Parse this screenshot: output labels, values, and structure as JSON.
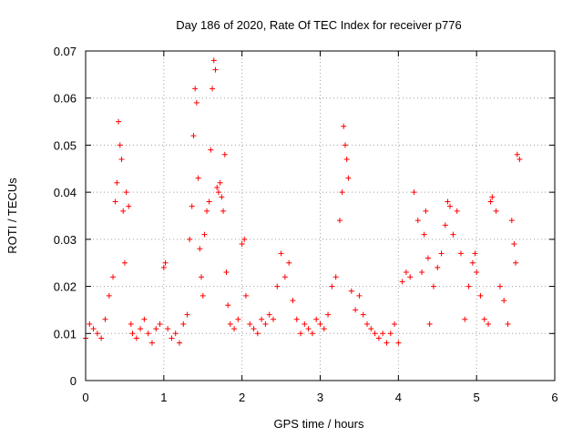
{
  "chart_data": {
    "type": "scatter",
    "title": "Day 186 of 2020, Rate Of TEC Index for receiver p776",
    "xlabel": "GPS time / hours",
    "ylabel": "ROTI / TECUs",
    "xlim": [
      0,
      6
    ],
    "ylim": [
      0,
      0.07
    ],
    "x_ticks": [
      0,
      1,
      2,
      3,
      4,
      5,
      6
    ],
    "x_tick_labels": [
      "0",
      "1",
      "2",
      "3",
      "4",
      "5",
      "6"
    ],
    "y_ticks": [
      0,
      0.01,
      0.02,
      0.03,
      0.04,
      0.05,
      0.06,
      0.07
    ],
    "y_tick_labels": [
      "0",
      "0.01",
      "0.02",
      "0.03",
      "0.04",
      "0.05",
      "0.06",
      "0.07"
    ],
    "grid": true,
    "marker": "+",
    "color": "#ff0000",
    "series": [
      {
        "name": "ROTI",
        "x": [
          0.0,
          0.05,
          0.1,
          0.15,
          0.2,
          0.25,
          0.3,
          0.35,
          0.38,
          0.4,
          0.42,
          0.44,
          0.46,
          0.48,
          0.5,
          0.52,
          0.55,
          0.58,
          0.6,
          0.65,
          0.7,
          0.75,
          0.8,
          0.85,
          0.9,
          0.95,
          1.0,
          1.02,
          1.05,
          1.1,
          1.15,
          1.2,
          1.25,
          1.3,
          1.33,
          1.36,
          1.38,
          1.4,
          1.42,
          1.44,
          1.46,
          1.48,
          1.5,
          1.52,
          1.55,
          1.58,
          1.6,
          1.62,
          1.64,
          1.66,
          1.68,
          1.7,
          1.72,
          1.74,
          1.76,
          1.78,
          1.8,
          1.82,
          1.85,
          1.9,
          1.95,
          2.0,
          2.03,
          2.05,
          2.1,
          2.15,
          2.2,
          2.25,
          2.3,
          2.35,
          2.4,
          2.45,
          2.5,
          2.55,
          2.6,
          2.65,
          2.7,
          2.75,
          2.8,
          2.85,
          2.9,
          2.95,
          3.0,
          3.05,
          3.1,
          3.15,
          3.2,
          3.25,
          3.28,
          3.3,
          3.32,
          3.34,
          3.36,
          3.4,
          3.45,
          3.5,
          3.55,
          3.6,
          3.65,
          3.7,
          3.75,
          3.8,
          3.85,
          3.9,
          3.95,
          4.0,
          4.05,
          4.1,
          4.15,
          4.2,
          4.25,
          4.3,
          4.33,
          4.35,
          4.38,
          4.4,
          4.45,
          4.5,
          4.55,
          4.6,
          4.63,
          4.66,
          4.7,
          4.75,
          4.8,
          4.85,
          4.9,
          4.95,
          4.98,
          5.0,
          5.05,
          5.1,
          5.15,
          5.18,
          5.2,
          5.25,
          5.3,
          5.35,
          5.4,
          5.45,
          5.48,
          5.5,
          5.52,
          5.55
        ],
        "y": [
          0.009,
          0.012,
          0.011,
          0.01,
          0.009,
          0.013,
          0.018,
          0.022,
          0.038,
          0.042,
          0.055,
          0.05,
          0.047,
          0.036,
          0.025,
          0.04,
          0.037,
          0.012,
          0.01,
          0.009,
          0.011,
          0.013,
          0.01,
          0.008,
          0.011,
          0.012,
          0.024,
          0.025,
          0.011,
          0.009,
          0.01,
          0.008,
          0.012,
          0.014,
          0.03,
          0.037,
          0.052,
          0.062,
          0.059,
          0.043,
          0.028,
          0.022,
          0.018,
          0.031,
          0.036,
          0.038,
          0.049,
          0.062,
          0.068,
          0.066,
          0.041,
          0.04,
          0.042,
          0.039,
          0.036,
          0.048,
          0.023,
          0.016,
          0.012,
          0.011,
          0.013,
          0.029,
          0.03,
          0.018,
          0.012,
          0.011,
          0.01,
          0.013,
          0.012,
          0.014,
          0.013,
          0.02,
          0.027,
          0.022,
          0.025,
          0.017,
          0.013,
          0.01,
          0.012,
          0.011,
          0.01,
          0.013,
          0.012,
          0.011,
          0.014,
          0.02,
          0.022,
          0.034,
          0.04,
          0.054,
          0.05,
          0.047,
          0.043,
          0.019,
          0.015,
          0.018,
          0.014,
          0.012,
          0.011,
          0.01,
          0.009,
          0.01,
          0.008,
          0.01,
          0.012,
          0.008,
          0.021,
          0.023,
          0.022,
          0.04,
          0.034,
          0.023,
          0.031,
          0.036,
          0.026,
          0.012,
          0.02,
          0.024,
          0.027,
          0.033,
          0.038,
          0.037,
          0.031,
          0.036,
          0.027,
          0.013,
          0.02,
          0.025,
          0.027,
          0.023,
          0.018,
          0.013,
          0.012,
          0.038,
          0.039,
          0.036,
          0.02,
          0.017,
          0.012,
          0.034,
          0.029,
          0.025,
          0.048,
          0.047
        ]
      }
    ]
  }
}
